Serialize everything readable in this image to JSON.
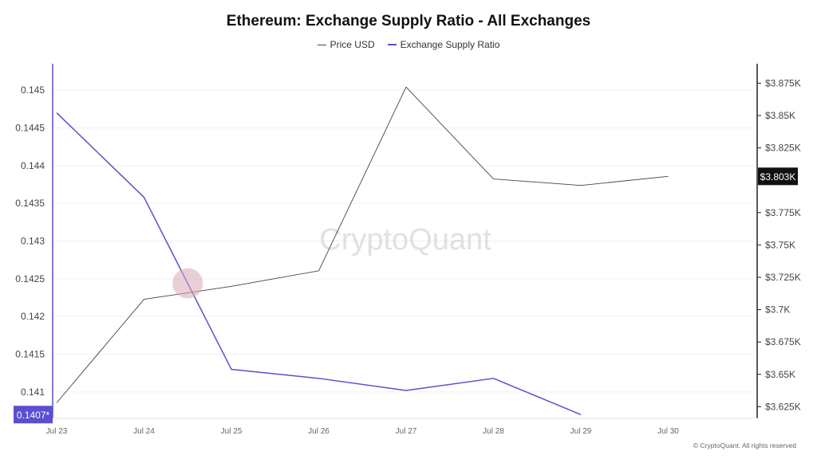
{
  "chart_data": {
    "type": "line",
    "title": "Ethereum: Exchange Supply Ratio - All Exchanges",
    "watermark": "CryptoQuant",
    "footer": "© CryptoQuant. All rights reserved",
    "categories": [
      "Jul 23",
      "Jul 24",
      "Jul 25",
      "Jul 26",
      "Jul 27",
      "Jul 28",
      "Jul 29",
      "Jul 30"
    ],
    "left_axis": {
      "ticks": [
        "0.141",
        "0.1415",
        "0.142",
        "0.1425",
        "0.143",
        "0.1435",
        "0.144",
        "0.1445",
        "0.145"
      ],
      "ylim": [
        0.14065,
        0.14535
      ]
    },
    "right_axis": {
      "ticks": [
        "$3.625K",
        "$3.65K",
        "$3.675K",
        "$3.7K",
        "$3.725K",
        "$3.75K",
        "$3.775K",
        "$3.8K",
        "$3.825K",
        "$3.85K",
        "$3.875K"
      ],
      "tick_values": [
        3625,
        3650,
        3675,
        3700,
        3725,
        3750,
        3775,
        3800,
        3825,
        3850,
        3875
      ],
      "ylim": [
        3616,
        3890
      ]
    },
    "series": [
      {
        "name": "Price USD",
        "axis": "right",
        "color": "#444444",
        "values": [
          3628,
          3708,
          3718,
          3730,
          3872,
          3801,
          3796,
          3803
        ]
      },
      {
        "name": "Exchange Supply Ratio",
        "axis": "left",
        "color": "#5b4ecf",
        "values": [
          0.1447,
          0.14358,
          0.1413,
          0.14118,
          0.14102,
          0.14118,
          0.1407,
          null
        ]
      }
    ],
    "current_labels": {
      "left": "0.1407*",
      "right": "$3.803K"
    },
    "grid": "horizontal",
    "legend_placement": "top-center"
  }
}
